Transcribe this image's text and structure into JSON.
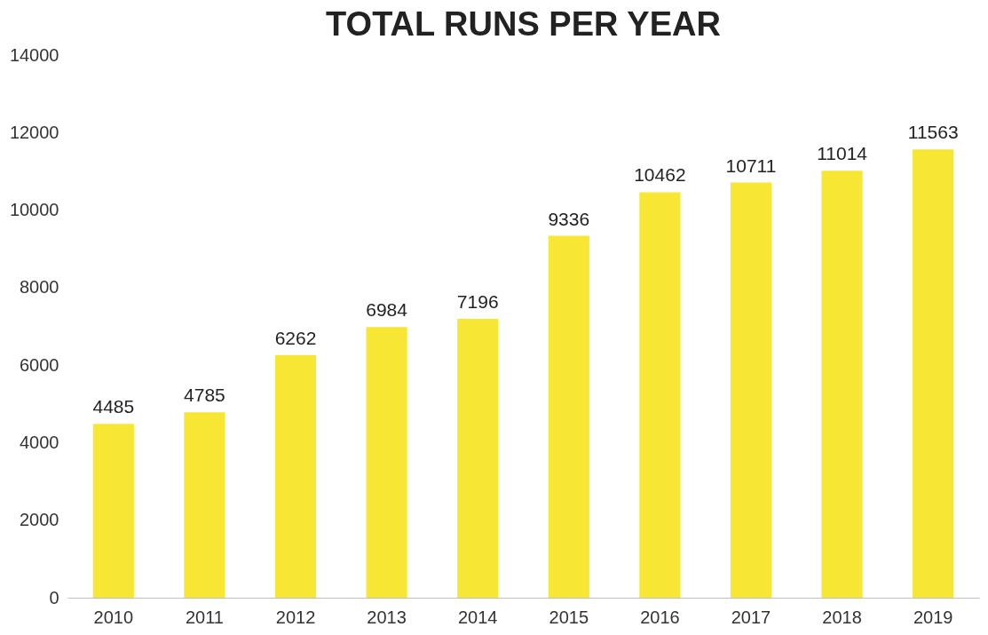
{
  "chart_data": {
    "type": "bar",
    "title": "TOTAL RUNS PER YEAR",
    "categories": [
      "2010",
      "2011",
      "2012",
      "2013",
      "2014",
      "2015",
      "2016",
      "2017",
      "2018",
      "2019"
    ],
    "values": [
      4485,
      4785,
      6262,
      6984,
      7196,
      9336,
      10462,
      10711,
      11014,
      11563
    ],
    "color": "#f7e634",
    "ylim": [
      0,
      14000
    ],
    "yticks": [
      0,
      2000,
      4000,
      6000,
      8000,
      10000,
      12000,
      14000
    ],
    "grid": false,
    "data_labels": true
  }
}
